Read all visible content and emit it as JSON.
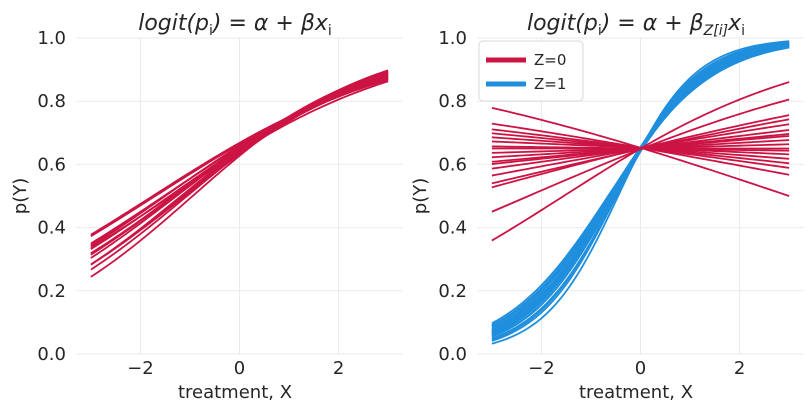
{
  "colors": {
    "z0": "#cc1444",
    "z1": "#1f8fdd",
    "grid": "#ebebeb",
    "text": "#262626"
  },
  "chart_data": [
    {
      "type": "line",
      "title": {
        "main": "logit(p",
        "sub": "i",
        "rest": ") = α + βx",
        "tail_sub": "i"
      },
      "xlabel": "treatment, X",
      "ylabel": "p(Y)",
      "xlim": [
        -3.3,
        3.3
      ],
      "ylim": [
        0.0,
        1.0
      ],
      "xticks": [
        -2,
        0,
        2
      ],
      "xtick_labels": [
        "−2",
        "0",
        "2"
      ],
      "yticks": [
        0.0,
        0.2,
        0.4,
        0.6,
        0.8,
        1.0
      ],
      "ytick_labels": [
        "0.0",
        "0.2",
        "0.4",
        "0.6",
        "0.8",
        "1.0"
      ],
      "x_range": [
        -3,
        3
      ],
      "series": [
        {
          "group": "Z=0",
          "alpha": 0.62,
          "beta": 0.44
        },
        {
          "group": "Z=0",
          "alpha": 0.6,
          "beta": 0.46
        },
        {
          "group": "Z=0",
          "alpha": 0.65,
          "beta": 0.43
        },
        {
          "group": "Z=0",
          "alpha": 0.58,
          "beta": 0.42
        },
        {
          "group": "Z=0",
          "alpha": 0.55,
          "beta": 0.52
        },
        {
          "group": "Z=0",
          "alpha": 0.52,
          "beta": 0.55
        },
        {
          "group": "Z=0",
          "alpha": 0.57,
          "beta": 0.5
        },
        {
          "group": "Z=0",
          "alpha": 0.68,
          "beta": 0.4
        },
        {
          "group": "Z=0",
          "alpha": 0.7,
          "beta": 0.4
        },
        {
          "group": "Z=0",
          "alpha": 0.63,
          "beta": 0.47
        },
        {
          "group": "Z=0",
          "alpha": 0.6,
          "beta": 0.51
        },
        {
          "group": "Z=0",
          "alpha": 0.66,
          "beta": 0.44
        },
        {
          "group": "Z=0",
          "alpha": 0.61,
          "beta": 0.48
        },
        {
          "group": "Z=0",
          "alpha": 0.54,
          "beta": 0.49
        },
        {
          "group": "Z=0",
          "alpha": 0.64,
          "beta": 0.42
        },
        {
          "group": "Z=0",
          "alpha": 0.59,
          "beta": 0.45
        }
      ]
    },
    {
      "type": "line",
      "title": {
        "main": "logit(p",
        "sub": "i",
        "rest": ") = α + β",
        "tail_sub": "Z[i]",
        "tail": "x",
        "tail2_sub": "i"
      },
      "xlabel": "treatment, X",
      "ylabel": "p(Y)",
      "xlim": [
        -3.3,
        3.3
      ],
      "ylim": [
        0.0,
        1.0
      ],
      "xticks": [
        -2,
        0,
        2
      ],
      "xtick_labels": [
        "−2",
        "0",
        "2"
      ],
      "yticks": [
        0.0,
        0.2,
        0.4,
        0.6,
        0.8,
        1.0
      ],
      "ytick_labels": [
        "0.0",
        "0.2",
        "0.4",
        "0.6",
        "0.8",
        "1.0"
      ],
      "x_range": [
        -3,
        3
      ],
      "legend": {
        "placement": "top-left",
        "entries": [
          {
            "label": "Z=0",
            "group": "Z=0"
          },
          {
            "label": "Z=1",
            "group": "Z=1"
          }
        ]
      },
      "series": [
        {
          "group": "Z=1",
          "alpha": 0.62,
          "beta": 0.95
        },
        {
          "group": "Z=1",
          "alpha": 0.6,
          "beta": 0.98
        },
        {
          "group": "Z=1",
          "alpha": 0.64,
          "beta": 1.0
        },
        {
          "group": "Z=1",
          "alpha": 0.58,
          "beta": 1.02
        },
        {
          "group": "Z=1",
          "alpha": 0.61,
          "beta": 1.04
        },
        {
          "group": "Z=1",
          "alpha": 0.63,
          "beta": 1.05
        },
        {
          "group": "Z=1",
          "alpha": 0.59,
          "beta": 1.06
        },
        {
          "group": "Z=1",
          "alpha": 0.62,
          "beta": 1.07
        },
        {
          "group": "Z=1",
          "alpha": 0.6,
          "beta": 1.08
        },
        {
          "group": "Z=1",
          "alpha": 0.64,
          "beta": 1.09
        },
        {
          "group": "Z=1",
          "alpha": 0.61,
          "beta": 1.1
        },
        {
          "group": "Z=1",
          "alpha": 0.62,
          "beta": 1.12
        },
        {
          "group": "Z=1",
          "alpha": 0.6,
          "beta": 1.14
        },
        {
          "group": "Z=1",
          "alpha": 0.63,
          "beta": 1.16
        },
        {
          "group": "Z=1",
          "alpha": 0.58,
          "beta": 1.18
        },
        {
          "group": "Z=1",
          "alpha": 0.62,
          "beta": 1.22
        },
        {
          "group": "Z=1",
          "alpha": 0.61,
          "beta": 1.25
        },
        {
          "group": "Z=1",
          "alpha": 0.6,
          "beta": 1.33
        },
        {
          "group": "Z=1",
          "alpha": 0.63,
          "beta": 1.02
        },
        {
          "group": "Z=1",
          "alpha": 0.61,
          "beta": 0.97
        },
        {
          "group": "Z=0",
          "alpha": 0.62,
          "beta": 0.4
        },
        {
          "group": "Z=0",
          "alpha": 0.63,
          "beta": -0.21
        },
        {
          "group": "Z=0",
          "alpha": 0.61,
          "beta": 0.27
        },
        {
          "group": "Z=0",
          "alpha": 0.62,
          "beta": 0.17
        },
        {
          "group": "Z=0",
          "alpha": 0.63,
          "beta": -0.12
        },
        {
          "group": "Z=0",
          "alpha": 0.62,
          "beta": 0.09
        },
        {
          "group": "Z=0",
          "alpha": 0.63,
          "beta": -0.07
        },
        {
          "group": "Z=0",
          "alpha": 0.62,
          "beta": 0.04
        },
        {
          "group": "Z=0",
          "alpha": 0.62,
          "beta": 0.02
        },
        {
          "group": "Z=0",
          "alpha": 0.63,
          "beta": -0.03
        },
        {
          "group": "Z=0",
          "alpha": 0.62,
          "beta": 0.0
        },
        {
          "group": "Z=0",
          "alpha": 0.61,
          "beta": 0.15
        },
        {
          "group": "Z=0",
          "alpha": 0.63,
          "beta": -0.09
        },
        {
          "group": "Z=0",
          "alpha": 0.62,
          "beta": 0.12
        },
        {
          "group": "Z=0",
          "alpha": 0.62,
          "beta": 0.06
        },
        {
          "group": "Z=0",
          "alpha": 0.63,
          "beta": -0.05
        },
        {
          "group": "Z=0",
          "alpha": 0.62,
          "beta": 0.07
        },
        {
          "group": "Z=0",
          "alpha": 0.62,
          "beta": -0.01
        }
      ]
    }
  ]
}
